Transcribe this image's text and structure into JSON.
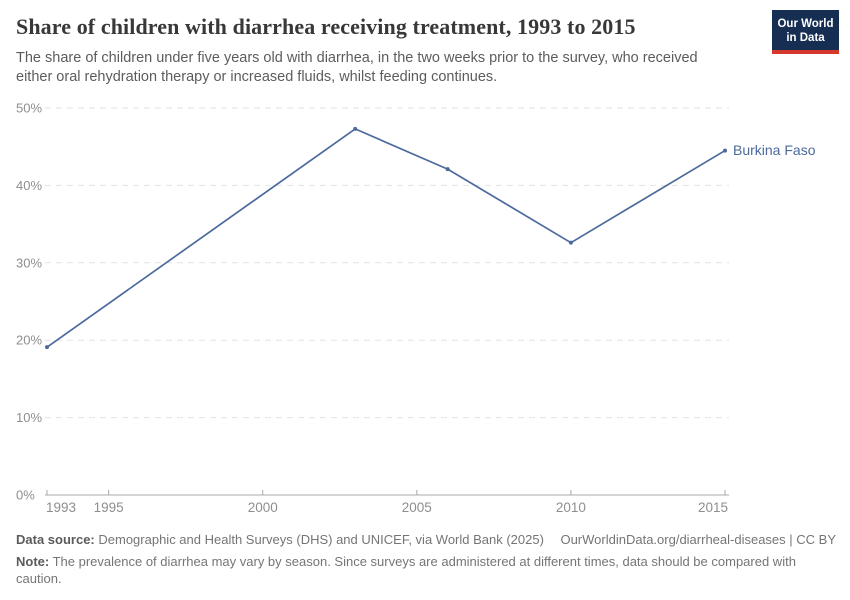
{
  "header": {
    "title": "Share of children with diarrhea receiving treatment, 1993 to 2015",
    "subtitle": "The share of children under five years old with diarrhea, in the two weeks prior to the survey, who received either oral rehydration therapy or increased fluids, whilst feeding continues.",
    "logo": {
      "line1": "Our World",
      "line2": "in Data"
    }
  },
  "chart_data": {
    "type": "line",
    "title": "Share of children with diarrhea receiving treatment, 1993 to 2015",
    "series": [
      {
        "name": "Burkina Faso",
        "x": [
          1993,
          2003,
          2006,
          2010,
          2015
        ],
        "y": [
          19.1,
          47.3,
          42.1,
          32.6,
          44.5
        ]
      }
    ],
    "xlim": [
      1993,
      2015
    ],
    "ylim": [
      0,
      50
    ],
    "x_ticks": [
      1993,
      1995,
      2000,
      2005,
      2010,
      2015
    ],
    "y_ticks": [
      0,
      10,
      20,
      30,
      40,
      50
    ],
    "y_tick_labels": [
      "0%",
      "10%",
      "20%",
      "30%",
      "40%",
      "50%"
    ],
    "grid": "horizontal dashed gridlines, 0% axis solid with small upward year ticks",
    "legend_position": "end-of-line label at right",
    "line_color": "#4C6A9C",
    "end_label": "Burkina Faso"
  },
  "footer": {
    "datasource_label": "Data source:",
    "datasource_text": "Demographic and Health Surveys (DHS) and UNICEF, via World Bank (2025)",
    "link": "OurWorldinData.org/diarrheal-diseases | CC BY",
    "note_label": "Note:",
    "note_text": "The prevalence of diarrhea may vary by season. Since surveys are administered at different times, data should be compared with caution."
  },
  "colors": {
    "accent_line": "#4C6A9C",
    "grid": "#e2e2e2",
    "axis": "#a9a9a9",
    "tick_label": "#8e8e8e",
    "title_text": "#383838",
    "subtitle_text": "#5c5c5c",
    "footer_text": "#757575",
    "logo_navy": "#152e52",
    "logo_red": "#d7382e"
  }
}
